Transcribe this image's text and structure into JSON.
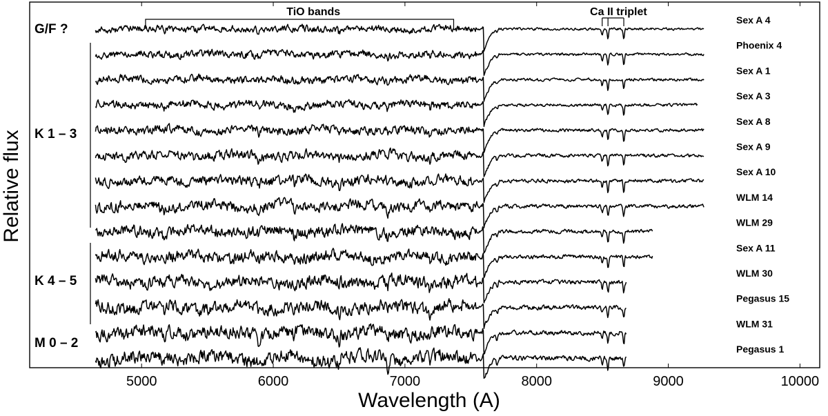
{
  "chart_data": {
    "type": "line",
    "xlabel": "Wavelength (A)",
    "ylabel": "Relative flux",
    "xlim": [
      4150,
      10150
    ],
    "xticks": [
      5000,
      6000,
      7000,
      8000,
      9000,
      10000
    ],
    "xtick_labels": [
      "5000",
      "6000",
      "7000",
      "8000",
      "9000",
      "10000"
    ],
    "grid": false,
    "annotations": {
      "tio_bands": {
        "label": "TiO bands",
        "range": [
          5030,
          7370
        ]
      },
      "ca_triplet": {
        "label": "Ca II triplet",
        "lines": [
          8498,
          8542,
          8662
        ]
      }
    },
    "group_labels": [
      {
        "label": "G/F ?",
        "stars": [
          "Sex A 4"
        ]
      },
      {
        "label": "K 1 – 3",
        "stars": [
          "Phoenix 4",
          "Sex A 1",
          "Sex A 3",
          "Sex A 8",
          "Sex A 9",
          "Sex A 10",
          "WLM 14",
          "WLM 29"
        ]
      },
      {
        "label": "K 4 – 5",
        "stars": [
          "Sex A 11",
          "WLM 30",
          "Pegasus 15"
        ]
      },
      {
        "label": "M 0 – 2",
        "stars": [
          "WLM 31",
          "Pegasus 1"
        ]
      }
    ],
    "series": [
      {
        "name": "Sex A 4",
        "x_range": [
          4650,
          9270
        ],
        "offset": 0
      },
      {
        "name": "Phoenix 4",
        "x_range": [
          4650,
          9270
        ],
        "offset": 1
      },
      {
        "name": "Sex A 1",
        "x_range": [
          4650,
          9270
        ],
        "offset": 2
      },
      {
        "name": "Sex A 3",
        "x_range": [
          4650,
          9220
        ],
        "offset": 3
      },
      {
        "name": "Sex A 8",
        "x_range": [
          4650,
          9270
        ],
        "offset": 4
      },
      {
        "name": "Sex A 9",
        "x_range": [
          4650,
          9270
        ],
        "offset": 5
      },
      {
        "name": "Sex A 10",
        "x_range": [
          4650,
          9270
        ],
        "offset": 6
      },
      {
        "name": "WLM 14",
        "x_range": [
          4650,
          9270
        ],
        "offset": 7
      },
      {
        "name": "WLM 29",
        "x_range": [
          4650,
          8880
        ],
        "offset": 8
      },
      {
        "name": "Sex A 11",
        "x_range": [
          4650,
          8880
        ],
        "offset": 9
      },
      {
        "name": "WLM 30",
        "x_range": [
          4650,
          8680
        ],
        "offset": 10
      },
      {
        "name": "Pegasus 15",
        "x_range": [
          4650,
          8680
        ],
        "offset": 11
      },
      {
        "name": "WLM 31",
        "x_range": [
          4650,
          8680
        ],
        "offset": 12
      },
      {
        "name": "Pegasus 1",
        "x_range": [
          4650,
          8680
        ],
        "offset": 13
      }
    ],
    "features": {
      "telluric_a_band": 7600,
      "ca_ii_triplet": [
        8498,
        8542,
        8662
      ],
      "absorption_lines": [
        5170,
        5890,
        6160,
        6500,
        6870,
        7190,
        7700
      ]
    }
  }
}
